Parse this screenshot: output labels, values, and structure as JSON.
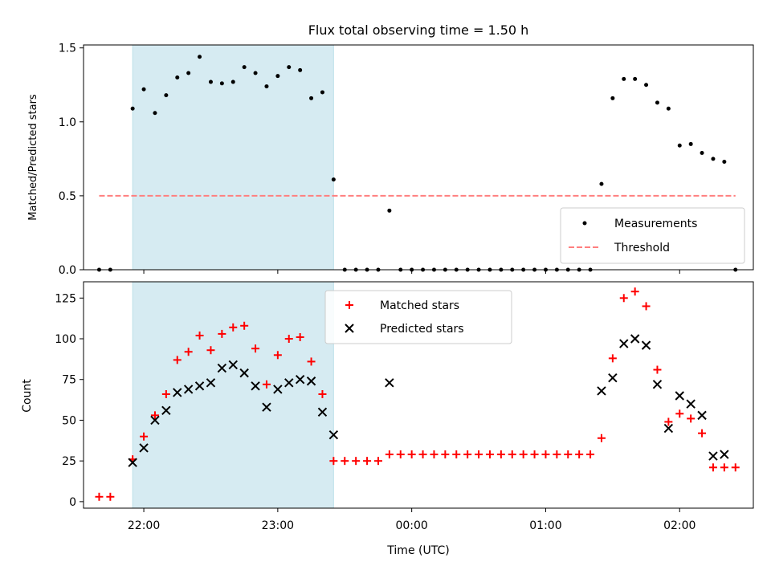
{
  "chart_data": [
    {
      "type": "scatter",
      "title": "Flux total observing time = 1.50 h",
      "xlabel": "",
      "ylabel": "Matched/Predicted stars",
      "ylim": [
        0,
        1.5
      ],
      "yticks": [
        "0.0",
        "0.5",
        "1.0",
        "1.5"
      ],
      "x_axis": "time (UTC), shared with lower panel",
      "shaded_span": [
        "21:55",
        "23:25"
      ],
      "legend_location": "lower right",
      "series": [
        {
          "name": "Measurements",
          "marker": "dot",
          "color": "#000000",
          "points": [
            [
              "21:40",
              0.0
            ],
            [
              "21:45",
              0.0
            ],
            [
              "21:55",
              1.09
            ],
            [
              "22:00",
              1.22
            ],
            [
              "22:05",
              1.06
            ],
            [
              "22:10",
              1.18
            ],
            [
              "22:15",
              1.3
            ],
            [
              "22:20",
              1.33
            ],
            [
              "22:25",
              1.44
            ],
            [
              "22:30",
              1.27
            ],
            [
              "22:35",
              1.26
            ],
            [
              "22:40",
              1.27
            ],
            [
              "22:45",
              1.37
            ],
            [
              "22:50",
              1.33
            ],
            [
              "22:55",
              1.24
            ],
            [
              "23:00",
              1.31
            ],
            [
              "23:05",
              1.37
            ],
            [
              "23:10",
              1.35
            ],
            [
              "23:15",
              1.16
            ],
            [
              "23:20",
              1.2
            ],
            [
              "23:25",
              0.61
            ],
            [
              "23:30",
              0.0
            ],
            [
              "23:35",
              0.0
            ],
            [
              "23:40",
              0.0
            ],
            [
              "23:45",
              0.0
            ],
            [
              "23:50",
              0.4
            ],
            [
              "23:55",
              0.0
            ],
            [
              "00:00",
              0.0
            ],
            [
              "00:05",
              0.0
            ],
            [
              "00:10",
              0.0
            ],
            [
              "00:15",
              0.0
            ],
            [
              "00:20",
              0.0
            ],
            [
              "00:25",
              0.0
            ],
            [
              "00:30",
              0.0
            ],
            [
              "00:35",
              0.0
            ],
            [
              "00:40",
              0.0
            ],
            [
              "00:45",
              0.0
            ],
            [
              "00:50",
              0.0
            ],
            [
              "00:55",
              0.0
            ],
            [
              "01:00",
              0.0
            ],
            [
              "01:05",
              0.0
            ],
            [
              "01:10",
              0.0
            ],
            [
              "01:15",
              0.0
            ],
            [
              "01:20",
              0.0
            ],
            [
              "01:25",
              0.58
            ],
            [
              "01:30",
              1.16
            ],
            [
              "01:35",
              1.29
            ],
            [
              "01:40",
              1.29
            ],
            [
              "01:45",
              1.25
            ],
            [
              "01:50",
              1.13
            ],
            [
              "01:55",
              1.09
            ],
            [
              "02:00",
              0.84
            ],
            [
              "02:05",
              0.85
            ],
            [
              "02:10",
              0.79
            ],
            [
              "02:15",
              0.75
            ],
            [
              "02:20",
              0.73
            ],
            [
              "02:25",
              0.0
            ]
          ]
        },
        {
          "name": "Threshold",
          "style": "dashed",
          "color": "#ff7f7f",
          "points": [
            [
              "21:40",
              0.5
            ],
            [
              "02:25",
              0.5
            ]
          ]
        }
      ]
    },
    {
      "type": "scatter",
      "title": "",
      "xlabel": "Time (UTC)",
      "ylabel": "Count",
      "ylim": [
        0,
        135
      ],
      "yticks": [
        "0",
        "25",
        "50",
        "75",
        "100",
        "125"
      ],
      "xticks": [
        "22:00",
        "23:00",
        "00:00",
        "01:00",
        "02:00"
      ],
      "shaded_span": [
        "21:55",
        "23:25"
      ],
      "legend_location": "upper center",
      "series": [
        {
          "name": "Matched stars",
          "marker": "plus",
          "color": "#ff0000",
          "points": [
            [
              "21:40",
              3
            ],
            [
              "21:45",
              3
            ],
            [
              "21:55",
              26
            ],
            [
              "22:00",
              40
            ],
            [
              "22:05",
              53
            ],
            [
              "22:10",
              66
            ],
            [
              "22:15",
              87
            ],
            [
              "22:20",
              92
            ],
            [
              "22:25",
              102
            ],
            [
              "22:30",
              93
            ],
            [
              "22:35",
              103
            ],
            [
              "22:40",
              107
            ],
            [
              "22:45",
              108
            ],
            [
              "22:50",
              94
            ],
            [
              "22:55",
              72
            ],
            [
              "23:00",
              90
            ],
            [
              "23:05",
              100
            ],
            [
              "23:10",
              101
            ],
            [
              "23:15",
              86
            ],
            [
              "23:20",
              66
            ],
            [
              "23:25",
              25
            ],
            [
              "23:30",
              25
            ],
            [
              "23:35",
              25
            ],
            [
              "23:40",
              25
            ],
            [
              "23:45",
              25
            ],
            [
              "23:50",
              29
            ],
            [
              "23:55",
              29
            ],
            [
              "00:00",
              29
            ],
            [
              "00:05",
              29
            ],
            [
              "00:10",
              29
            ],
            [
              "00:15",
              29
            ],
            [
              "00:20",
              29
            ],
            [
              "00:25",
              29
            ],
            [
              "00:30",
              29
            ],
            [
              "00:35",
              29
            ],
            [
              "00:40",
              29
            ],
            [
              "00:45",
              29
            ],
            [
              "00:50",
              29
            ],
            [
              "00:55",
              29
            ],
            [
              "01:00",
              29
            ],
            [
              "01:05",
              29
            ],
            [
              "01:10",
              29
            ],
            [
              "01:15",
              29
            ],
            [
              "01:20",
              29
            ],
            [
              "01:25",
              39
            ],
            [
              "01:30",
              88
            ],
            [
              "01:35",
              125
            ],
            [
              "01:40",
              129
            ],
            [
              "01:45",
              120
            ],
            [
              "01:50",
              81
            ],
            [
              "01:55",
              49
            ],
            [
              "02:00",
              54
            ],
            [
              "02:05",
              51
            ],
            [
              "02:10",
              42
            ],
            [
              "02:15",
              21
            ],
            [
              "02:20",
              21
            ],
            [
              "02:25",
              21
            ]
          ]
        },
        {
          "name": "Predicted stars",
          "marker": "x",
          "color": "#000000",
          "points": [
            [
              "21:55",
              24
            ],
            [
              "22:00",
              33
            ],
            [
              "22:05",
              50
            ],
            [
              "22:10",
              56
            ],
            [
              "22:15",
              67
            ],
            [
              "22:20",
              69
            ],
            [
              "22:25",
              71
            ],
            [
              "22:30",
              73
            ],
            [
              "22:35",
              82
            ],
            [
              "22:40",
              84
            ],
            [
              "22:45",
              79
            ],
            [
              "22:50",
              71
            ],
            [
              "22:55",
              58
            ],
            [
              "23:00",
              69
            ],
            [
              "23:05",
              73
            ],
            [
              "23:10",
              75
            ],
            [
              "23:15",
              74
            ],
            [
              "23:20",
              55
            ],
            [
              "23:25",
              41
            ],
            [
              "23:50",
              73
            ],
            [
              "01:25",
              68
            ],
            [
              "01:30",
              76
            ],
            [
              "01:35",
              97
            ],
            [
              "01:40",
              100
            ],
            [
              "01:45",
              96
            ],
            [
              "01:50",
              72
            ],
            [
              "01:55",
              45
            ],
            [
              "02:00",
              65
            ],
            [
              "02:05",
              60
            ],
            [
              "02:10",
              53
            ],
            [
              "02:15",
              28
            ],
            [
              "02:20",
              29
            ]
          ]
        }
      ]
    }
  ]
}
